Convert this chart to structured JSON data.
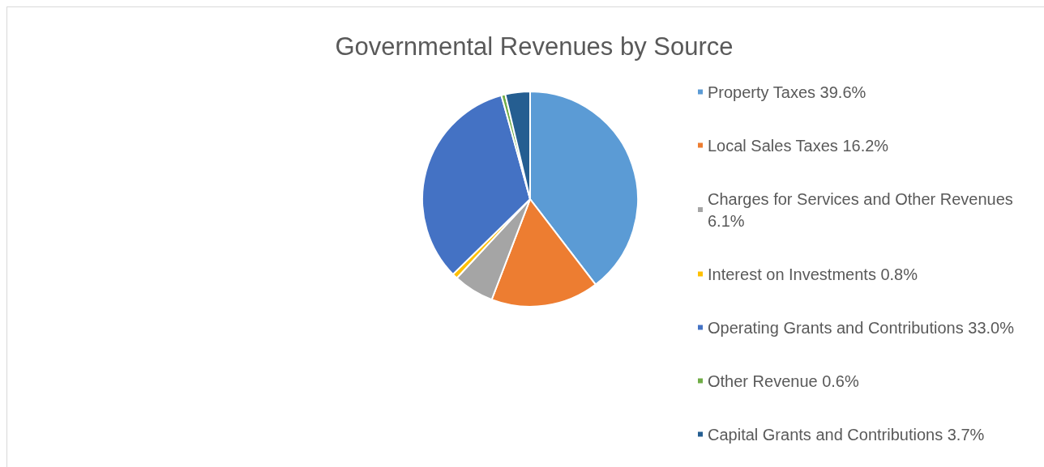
{
  "chart_data": {
    "type": "pie",
    "title": "Governmental Revenues by Source",
    "categories": [
      "Property Taxes 39.6%",
      "Local Sales Taxes 16.2%",
      "Charges for Services and Other Revenues 6.1%",
      "Interest on Investments 0.8%",
      "Operating Grants and Contributions 33.0%",
      "Other Revenue 0.6%",
      "Capital Grants and Contributions 3.7%"
    ],
    "values": [
      39.6,
      16.2,
      6.1,
      0.8,
      33.0,
      0.6,
      3.7
    ],
    "colors": [
      "#5b9bd5",
      "#ed7d31",
      "#a5a5a5",
      "#ffc000",
      "#4472c4",
      "#70ad47",
      "#255e91"
    ],
    "legend": "right"
  }
}
